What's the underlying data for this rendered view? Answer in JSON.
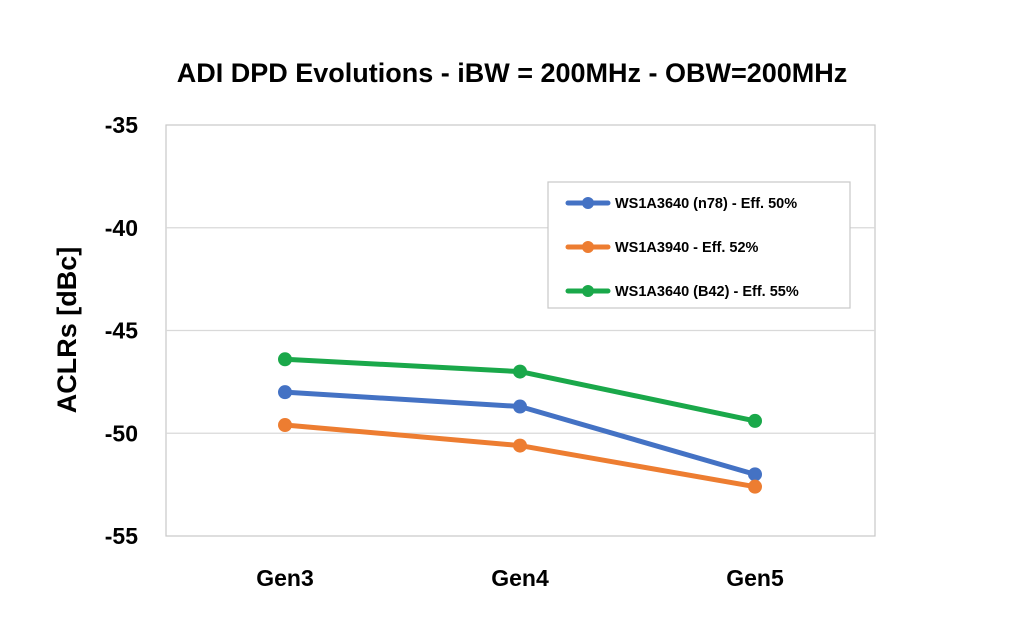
{
  "chart_data": {
    "type": "line",
    "title": "ADI DPD Evolutions - iBW = 200MHz - OBW=200MHz",
    "xlabel": "",
    "ylabel": "ACLRs [dBc]",
    "categories": [
      "Gen3",
      "Gen4",
      "Gen5"
    ],
    "ylim": [
      -55,
      -35
    ],
    "yticks": [
      -35,
      -40,
      -45,
      -50,
      -55
    ],
    "grid": true,
    "legend_position": "top-right",
    "series": [
      {
        "name": "WS1A3640 (n78) - Eff. 50%",
        "values": [
          -48.0,
          -48.7,
          -52.0
        ],
        "color": "#4472c4"
      },
      {
        "name": "WS1A3940 - Eff. 52%",
        "values": [
          -49.6,
          -50.6,
          -52.6
        ],
        "color": "#ed7d31"
      },
      {
        "name": "WS1A3640 (B42) - Eff. 55%",
        "values": [
          -46.4,
          -47.0,
          -49.4
        ],
        "color": "#1aa84a"
      }
    ]
  }
}
